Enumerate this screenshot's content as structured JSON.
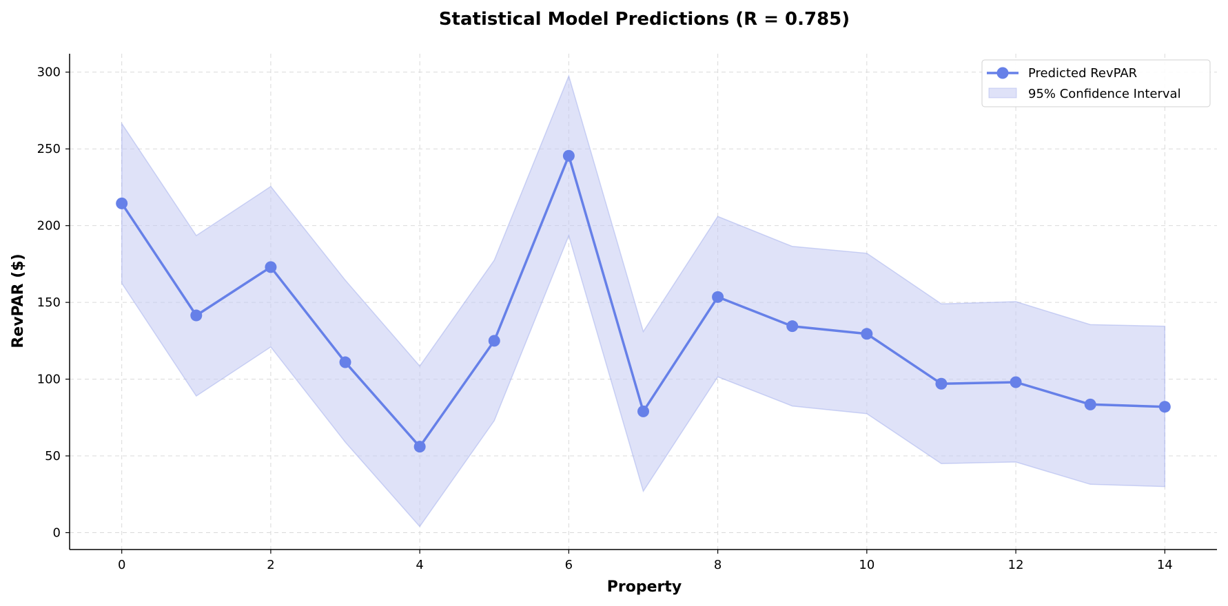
{
  "chart_data": {
    "type": "line",
    "title": "Statistical Model Predictions (R = 0.785)",
    "xlabel": "Property",
    "ylabel": "RevPAR ($)",
    "x": [
      0,
      1,
      2,
      3,
      4,
      5,
      6,
      7,
      8,
      9,
      10,
      11,
      12,
      13,
      14
    ],
    "xlim": [
      -0.7,
      14.7
    ],
    "ylim": [
      -11,
      312
    ],
    "xticks": [
      0,
      2,
      4,
      6,
      8,
      10,
      12,
      14
    ],
    "yticks": [
      0,
      50,
      100,
      150,
      200,
      250,
      300
    ],
    "grid": true,
    "legend_position": "top-right",
    "series": [
      {
        "name": "Predicted RevPAR",
        "kind": "line-with-markers",
        "color": "#6680e8",
        "values": [
          214.5,
          141.5,
          173,
          111,
          56,
          125,
          245.5,
          79,
          153.5,
          134.5,
          129.5,
          97,
          98,
          83.5,
          82
        ]
      },
      {
        "name": "95% Confidence Interval",
        "kind": "band",
        "color": "#c5caf2",
        "lower": [
          162.5,
          89,
          121,
          59,
          4,
          73,
          193.5,
          27,
          101.5,
          82.5,
          77.5,
          45,
          46,
          31.5,
          30
        ],
        "upper": [
          266.5,
          193.5,
          225.5,
          164.5,
          108.5,
          177.5,
          297.5,
          131,
          206,
          186.5,
          182,
          149,
          150.5,
          135.5,
          134.5
        ]
      }
    ]
  }
}
